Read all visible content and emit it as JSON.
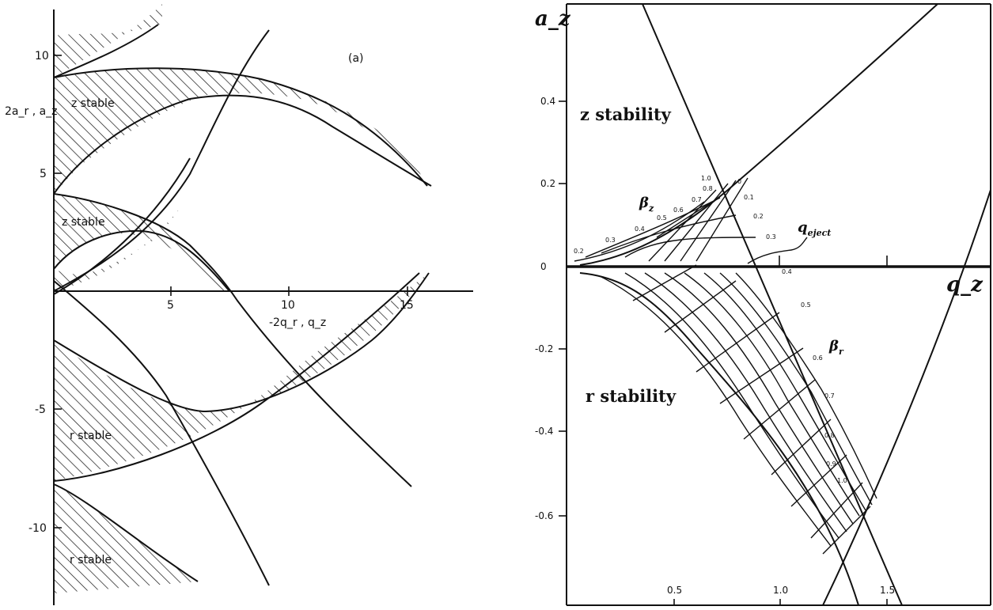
{
  "left_panel": {
    "panel_label": "(a)",
    "y_axis_label": "2a_r , a_z",
    "x_axis_label": "-2q_r , q_z",
    "y_ticks": [
      "10",
      "5",
      "-5",
      "-10"
    ],
    "x_ticks": [
      "5",
      "10",
      "15"
    ],
    "regions": [
      "z stable",
      "z stable",
      "r stable",
      "r stable"
    ]
  },
  "right_panel": {
    "y_axis_label": "a_z",
    "x_axis_label": "q_z",
    "y_ticks": [
      "0.4",
      "0.2",
      "0",
      "-0.2",
      "-0.4",
      "-0.6"
    ],
    "x_ticks": [
      "0.5",
      "1.0",
      "1.5"
    ],
    "region_z": "z stability",
    "region_r": "r stability",
    "beta_z_symbol": "β",
    "beta_z_sub": "z",
    "beta_r_symbol": "β",
    "beta_r_sub": "r",
    "q_eject_main": "q",
    "q_eject_sub": "eject",
    "beta_z_values": [
      "0",
      "0.1",
      "0.2",
      "0.3",
      "0.4",
      "0.5",
      "0.6",
      "0.7",
      "0.8",
      "1.0"
    ],
    "beta_z_left_values": [
      "0.2",
      "0.3",
      "0.4",
      "0.5",
      "0.6",
      "0.7",
      "0.8",
      "1.0"
    ],
    "beta_r_values": [
      "0.4",
      "0.5",
      "0.6",
      "0.7",
      "0.8",
      "0.9",
      "1.0"
    ]
  },
  "colors": {
    "ink": "#111111",
    "paper": "#ffffff"
  }
}
